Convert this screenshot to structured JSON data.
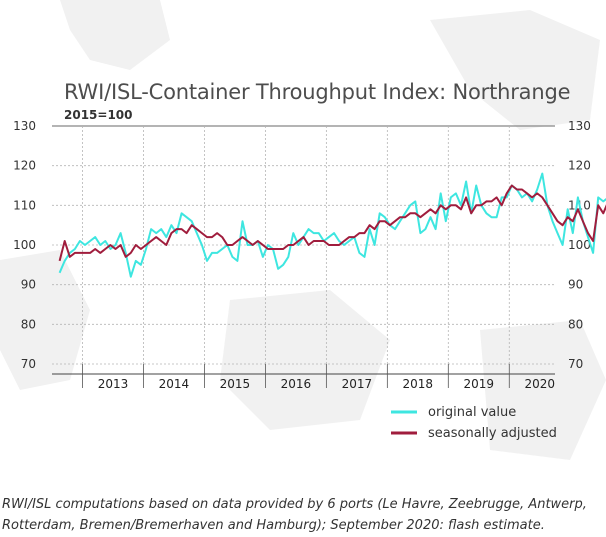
{
  "chart_data": {
    "type": "line",
    "title": "RWI/ISL-Container Throughput Index: Northrange",
    "subtitle": "2015=100",
    "ylim": [
      70,
      130
    ],
    "yticks": [
      70,
      80,
      90,
      100,
      110,
      120,
      130
    ],
    "xlim": [
      2012.5,
      2020.75
    ],
    "year_labels": [
      "2013",
      "2014",
      "2015",
      "2016",
      "2017",
      "2018",
      "2019",
      "2020"
    ],
    "grid": true,
    "legend_position": "bottom-right",
    "series": [
      {
        "name": "original value",
        "color": "#3ee6e0",
        "start": 2012.625,
        "step": 0.0833333,
        "values": [
          93,
          96,
          98,
          99,
          101,
          100,
          101,
          102,
          100,
          101,
          99,
          100,
          103,
          98,
          92,
          96,
          95,
          99,
          104,
          103,
          104,
          102,
          105,
          103,
          108,
          107,
          106,
          103,
          100,
          96,
          98,
          98,
          99,
          100,
          97,
          96,
          106,
          100,
          100,
          101,
          97,
          100,
          99,
          94,
          95,
          97,
          103,
          100,
          102,
          104,
          103,
          103,
          101,
          102,
          103,
          101,
          100,
          101,
          102,
          98,
          97,
          104,
          100,
          108,
          107,
          105,
          104,
          106,
          108,
          110,
          111,
          103,
          104,
          107,
          104,
          113,
          106,
          112,
          113,
          110,
          116,
          108,
          115,
          110,
          108,
          107,
          107,
          112,
          112,
          115,
          114,
          112,
          113,
          111,
          114,
          118,
          110,
          106,
          103,
          100,
          109,
          103,
          112,
          106,
          102,
          98,
          112,
          111,
          112
        ]
      },
      {
        "name": "seasonally adjusted",
        "color": "#a01d3d",
        "start": 2012.625,
        "step": 0.0833333,
        "values": [
          96,
          101,
          97,
          98,
          98,
          98,
          98,
          99,
          98,
          99,
          100,
          99,
          100,
          97,
          98,
          100,
          99,
          100,
          101,
          102,
          101,
          100,
          103,
          104,
          104,
          103,
          105,
          104,
          103,
          102,
          102,
          103,
          102,
          100,
          100,
          101,
          102,
          101,
          100,
          101,
          100,
          99,
          99,
          99,
          99,
          100,
          100,
          101,
          102,
          100,
          101,
          101,
          101,
          100,
          100,
          100,
          101,
          102,
          102,
          103,
          103,
          105,
          104,
          106,
          106,
          105,
          106,
          107,
          107,
          108,
          108,
          107,
          108,
          109,
          108,
          110,
          109,
          110,
          110,
          109,
          112,
          108,
          110,
          110,
          111,
          111,
          112,
          110,
          113,
          115,
          114,
          114,
          113,
          112,
          113,
          112,
          110,
          108,
          106,
          105,
          107,
          106,
          109,
          106,
          103,
          101,
          110,
          108,
          111
        ]
      }
    ]
  },
  "footnote": "RWI/ISL computations based on data provided by 6 ports (Le Havre, Zeebrugge, Antwerp, Rotterdam, Bremen/Bremerhaven and Hamburg); September 2020: flash estimate."
}
